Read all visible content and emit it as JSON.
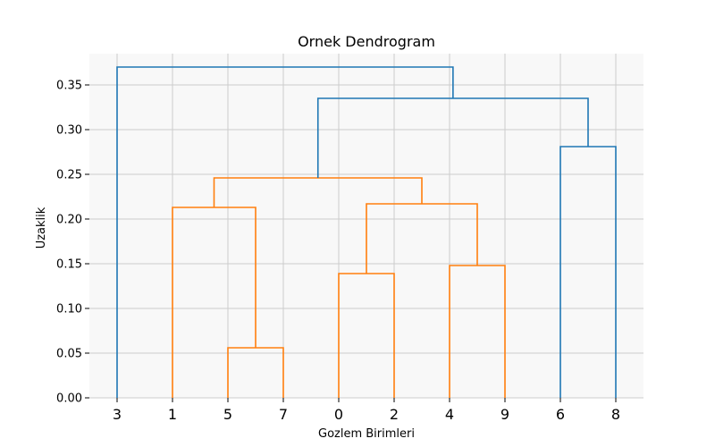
{
  "chart_data": {
    "type": "dendrogram",
    "title": "Ornek Dendrogram",
    "xlabel": "Gozlem Birimleri",
    "ylabel": "Uzaklik",
    "ylim": [
      0,
      0.385
    ],
    "yticks": [
      "0.00",
      "0.05",
      "0.10",
      "0.15",
      "0.20",
      "0.25",
      "0.30",
      "0.35"
    ],
    "ytick_values": [
      0,
      0.05,
      0.1,
      0.15,
      0.2,
      0.25,
      0.3,
      0.35
    ],
    "leaves": [
      "3",
      "1",
      "5",
      "7",
      "0",
      "2",
      "4",
      "9",
      "6",
      "8"
    ],
    "grid": true,
    "background": "#f8f8f8",
    "grid_color": "#cccccc",
    "colors": {
      "cluster": "#ff7f0e",
      "above": "#1f77b4"
    },
    "merges": [
      {
        "left": "5",
        "right": "7",
        "height": 0.056,
        "color": "cluster"
      },
      {
        "left": "0",
        "right": "2",
        "height": 0.139,
        "color": "cluster"
      },
      {
        "left": "4",
        "right": "9",
        "height": 0.148,
        "color": "cluster"
      },
      {
        "left": "1",
        "right": "(5,7)",
        "height": 0.213,
        "color": "cluster"
      },
      {
        "left": "(0,2)",
        "right": "(4,9)",
        "height": 0.217,
        "color": "cluster"
      },
      {
        "left": "(1,5,7)",
        "right": "(0,2,4,9)",
        "height": 0.246,
        "color": "cluster"
      },
      {
        "left": "6",
        "right": "8",
        "height": 0.281,
        "color": "above"
      },
      {
        "left": "(1,5,7,0,2,4,9)",
        "right": "(6,8)",
        "height": 0.335,
        "color": "above"
      },
      {
        "left": "3",
        "right": "(1,5,7,0,2,4,9,6,8)",
        "height": 0.37,
        "color": "above"
      }
    ]
  }
}
